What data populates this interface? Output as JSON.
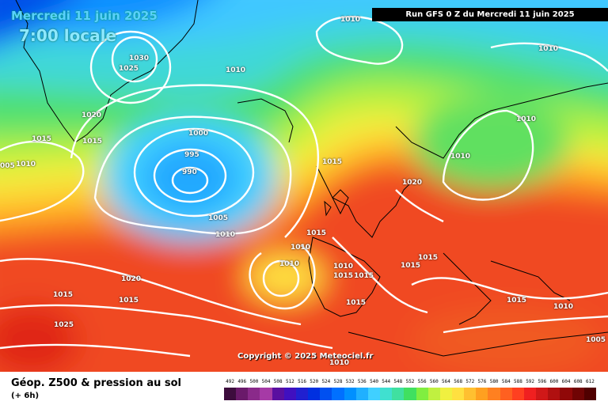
{
  "header": {
    "date": "Mercredi 11 juin 2025",
    "hour": "7:00 locale",
    "run": "Run GFS 0 Z du Mercredi 11 juin 2025"
  },
  "map": {
    "copyright": "Copyright © 2025 Meteociel.fr",
    "isobar_labels": [
      "1010",
      "1010",
      "1030",
      "1025",
      "1010",
      "1020",
      "1015",
      "1015",
      "1010",
      "005",
      "1000",
      "995",
      "990",
      "1015",
      "1010",
      "1005",
      "1010",
      "1010",
      "1015",
      "1010",
      "1010",
      "1015",
      "1015",
      "1015",
      "1015",
      "1020",
      "1020",
      "1015",
      "1025",
      "1015",
      "1015",
      "1015",
      "1010",
      "1005",
      "1010",
      "1010"
    ]
  },
  "legend": {
    "title": "Géop. Z500 & pression au sol",
    "subtitle": "(+ 6h)",
    "ticks": [
      "492",
      "496",
      "500",
      "504",
      "508",
      "512",
      "516",
      "520",
      "524",
      "528",
      "532",
      "536",
      "540",
      "544",
      "548",
      "552",
      "556",
      "560",
      "564",
      "568",
      "572",
      "576",
      "580",
      "584",
      "588",
      "592",
      "596",
      "600",
      "604",
      "608",
      "612"
    ],
    "colors": [
      "#3d0d3d",
      "#6a1a6a",
      "#8a2a8a",
      "#a63aa6",
      "#5a0fa0",
      "#4010c0",
      "#2020d0",
      "#0030e0",
      "#0050f0",
      "#0070ff",
      "#0090ff",
      "#20b0ff",
      "#40d0ff",
      "#40e0d0",
      "#40e0a0",
      "#40e060",
      "#80ee40",
      "#c0f040",
      "#f0f040",
      "#ffe040",
      "#ffc030",
      "#ffa020",
      "#ff8020",
      "#ff6020",
      "#ff4020",
      "#f02020",
      "#d01818",
      "#b01010",
      "#900808",
      "#700404",
      "#500000"
    ]
  }
}
